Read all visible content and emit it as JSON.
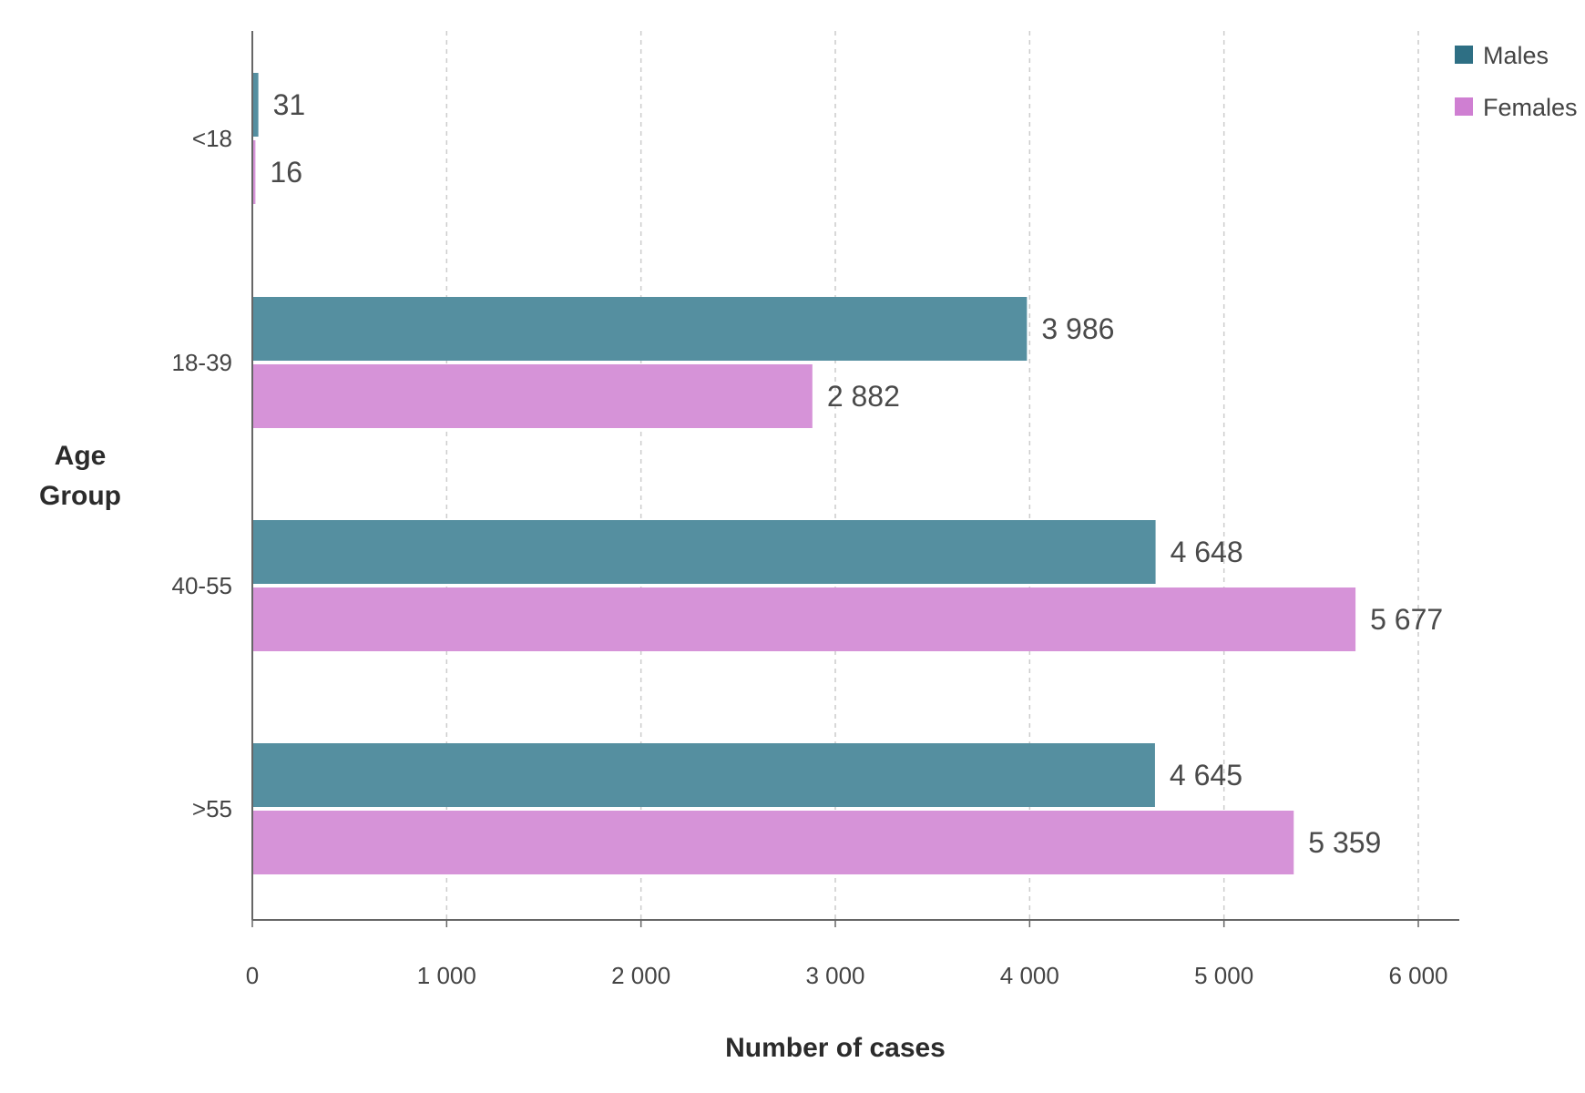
{
  "chart_data": {
    "type": "bar",
    "orientation": "horizontal",
    "title": "",
    "xlabel": "Number of cases",
    "ylabel": "Age Group",
    "ylabel_lines": [
      "Age",
      "Group"
    ],
    "categories": [
      "<18",
      "18-39",
      "40-55",
      ">55"
    ],
    "xlim": [
      0,
      6000
    ],
    "xticks": [
      0,
      1000,
      2000,
      3000,
      4000,
      5000,
      6000
    ],
    "xtick_labels": [
      "0",
      "1 000",
      "2 000",
      "3 000",
      "4 000",
      "5 000",
      "6 000"
    ],
    "grid": "vertical dashed",
    "legend_position": "top-right",
    "series": [
      {
        "name": "Males",
        "color": "#558f a0",
        "values": [
          31,
          3986,
          4648,
          4645
        ],
        "labels": [
          "31",
          "3 986",
          "4 648",
          "4 645"
        ]
      },
      {
        "name": "Females",
        "color": "#d693d8",
        "values": [
          16,
          2882,
          5677,
          5359
        ],
        "labels": [
          "16",
          "2 882",
          "5 677",
          "5 359"
        ]
      }
    ],
    "legend_colors": [
      "#2e6f84",
      "#cf7fd2"
    ]
  }
}
